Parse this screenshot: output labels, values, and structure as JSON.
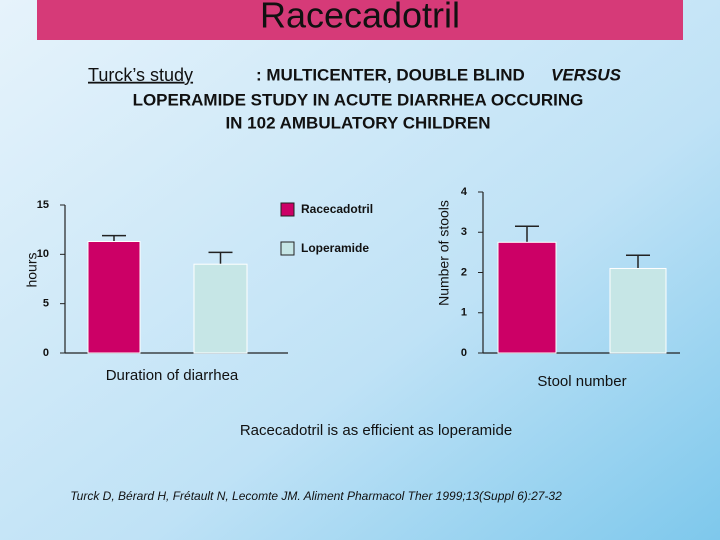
{
  "slide": {
    "title": "Racecadotril",
    "subtitle": {
      "study": "Turck’s study",
      "design": ": MULTICENTER, DOUBLE BLIND",
      "versus": "VERSUS",
      "line2": "LOPERAMIDE STUDY IN ACUTE DIARRHEA OCCURING",
      "line3": "IN 102 AMBULATORY CHILDREN"
    },
    "conclusion": "Racecadotril is as efficient as loperamide",
    "reference": "Turck D, Bérard H, Frétault N, Lecomte JM. Aliment Pharmacol Ther 1999;13(Suppl 6):27-32"
  },
  "chart_data": [
    {
      "type": "bar",
      "x_label": "Duration of diarrhea",
      "y_label": "hours",
      "ylim": [
        0,
        15
      ],
      "yticks": [
        0,
        5,
        10,
        15
      ],
      "series": [
        {
          "name": "Racecadotril",
          "color": "#cc0066",
          "values": [
            11.3
          ],
          "errors": [
            0.6
          ]
        },
        {
          "name": "Loperamide",
          "color": "#c6e6e6",
          "values": [
            9.0
          ],
          "errors": [
            1.2
          ]
        }
      ]
    },
    {
      "type": "bar",
      "x_label": "Stool number",
      "y_label": "Number of stools",
      "ylim": [
        0,
        4
      ],
      "yticks": [
        0,
        1,
        2,
        3,
        4
      ],
      "series": [
        {
          "color": "#cc0066",
          "values": [
            2.75
          ],
          "errors": [
            0.4
          ]
        },
        {
          "color": "#c6e6e6",
          "values": [
            2.1
          ],
          "errors": [
            0.33
          ]
        }
      ]
    }
  ]
}
